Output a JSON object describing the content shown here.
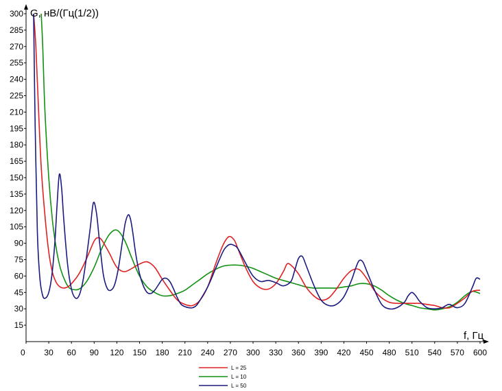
{
  "chart_data": {
    "type": "line",
    "title": "",
    "ylabel": "G, нВ/(Гц(1/2))",
    "xlabel": "f, Гц",
    "xlim": [
      0,
      600
    ],
    "ylim": [
      0,
      300
    ],
    "x_ticks": [
      "0",
      "30",
      "60",
      "90",
      "120",
      "150",
      "180",
      "210",
      "240",
      "270",
      "300",
      "330",
      "360",
      "390",
      "420",
      "450",
      "480",
      "510",
      "540",
      "570",
      "600"
    ],
    "y_ticks": [
      "15",
      "30",
      "45",
      "60",
      "75",
      "90",
      "105",
      "120",
      "135",
      "150",
      "165",
      "180",
      "195",
      "210",
      "225",
      "240",
      "255",
      "270",
      "285",
      "300"
    ],
    "grid": false,
    "legend_position": "bottom-center",
    "series": [
      {
        "name": "L = 25",
        "color": "#e02020",
        "x": [
          10,
          13,
          16,
          20,
          25,
          30,
          35,
          40,
          45,
          50,
          55,
          60,
          70,
          80,
          90,
          95,
          100,
          110,
          120,
          130,
          140,
          150,
          160,
          170,
          180,
          190,
          200,
          210,
          220,
          230,
          240,
          250,
          260,
          268,
          275,
          280,
          290,
          300,
          310,
          320,
          330,
          340,
          345,
          350,
          360,
          370,
          380,
          390,
          400,
          410,
          420,
          430,
          440,
          450,
          460,
          470,
          480,
          490,
          500,
          510,
          520,
          530,
          540,
          550,
          560,
          570,
          580,
          590,
          600
        ],
        "y": [
          300,
          270,
          220,
          160,
          115,
          82,
          63,
          54,
          50,
          49,
          50,
          53,
          62,
          76,
          92,
          95,
          93,
          81,
          68,
          64,
          67,
          71,
          73,
          68,
          57,
          47,
          38,
          34,
          33,
          38,
          50,
          70,
          88,
          96,
          93,
          85,
          68,
          55,
          49,
          48,
          53,
          64,
          71,
          70,
          62,
          50,
          42,
          38,
          40,
          48,
          58,
          65,
          66,
          58,
          47,
          40,
          36,
          35,
          35,
          35,
          35,
          34,
          33,
          31,
          31,
          35,
          40,
          46,
          47
        ]
      },
      {
        "name": "L = 10",
        "color": "#109010",
        "x": [
          20,
          22,
          25,
          30,
          35,
          40,
          45,
          50,
          55,
          60,
          70,
          80,
          90,
          100,
          110,
          120,
          130,
          140,
          150,
          160,
          170,
          180,
          190,
          200,
          210,
          220,
          230,
          240,
          250,
          260,
          270,
          280,
          290,
          300,
          310,
          320,
          330,
          340,
          350,
          360,
          370,
          380,
          390,
          400,
          410,
          420,
          430,
          440,
          450,
          460,
          470,
          480,
          490,
          500,
          510,
          520,
          530,
          540,
          550,
          560,
          570,
          580,
          590,
          600
        ],
        "y": [
          300,
          270,
          210,
          150,
          110,
          85,
          68,
          58,
          51,
          48,
          48,
          55,
          68,
          85,
          98,
          102,
          93,
          76,
          60,
          50,
          45,
          42,
          42,
          44,
          47,
          52,
          57,
          62,
          66,
          69,
          70,
          70,
          69,
          67,
          64,
          61,
          58,
          56,
          54,
          52,
          50,
          49,
          49,
          49,
          49,
          50,
          51,
          53,
          53,
          51,
          47,
          42,
          38,
          35,
          33,
          31,
          30,
          29,
          30,
          32,
          36,
          42,
          46,
          44
        ]
      },
      {
        "name": "L = 50",
        "color": "#1a1a80",
        "x": [
          10,
          12,
          15,
          18,
          22,
          26,
          30,
          34,
          38,
          41,
          44,
          47,
          50,
          55,
          60,
          65,
          70,
          75,
          80,
          85,
          89,
          93,
          97,
          102,
          107,
          112,
          117,
          122,
          127,
          131,
          135,
          138,
          141,
          145,
          150,
          155,
          160,
          165,
          170,
          175,
          180,
          185,
          190,
          195,
          200,
          205,
          210,
          215,
          220,
          225,
          230,
          240,
          250,
          260,
          265,
          270,
          275,
          280,
          290,
          300,
          310,
          320,
          330,
          340,
          350,
          355,
          360,
          365,
          370,
          380,
          390,
          400,
          410,
          420,
          430,
          435,
          440,
          445,
          450,
          460,
          470,
          480,
          490,
          500,
          505,
          510,
          515,
          520,
          530,
          540,
          550,
          555,
          560,
          570,
          580,
          590,
          595,
          600
        ],
        "y": [
          300,
          200,
          100,
          60,
          42,
          40,
          45,
          60,
          90,
          125,
          153,
          140,
          110,
          70,
          48,
          40,
          42,
          55,
          78,
          105,
          127,
          118,
          92,
          62,
          49,
          47,
          52,
          67,
          90,
          108,
          116,
          112,
          100,
          80,
          62,
          51,
          45,
          44,
          47,
          52,
          57,
          58,
          55,
          48,
          40,
          34,
          32,
          31,
          31,
          33,
          38,
          50,
          66,
          82,
          87,
          89,
          88,
          85,
          72,
          60,
          55,
          56,
          54,
          51,
          55,
          65,
          76,
          78,
          70,
          52,
          38,
          33,
          34,
          41,
          56,
          66,
          74,
          73,
          65,
          48,
          34,
          30,
          31,
          36,
          42,
          45,
          42,
          37,
          31,
          30,
          31,
          33,
          34,
          31,
          35,
          50,
          58,
          57
        ]
      }
    ]
  }
}
